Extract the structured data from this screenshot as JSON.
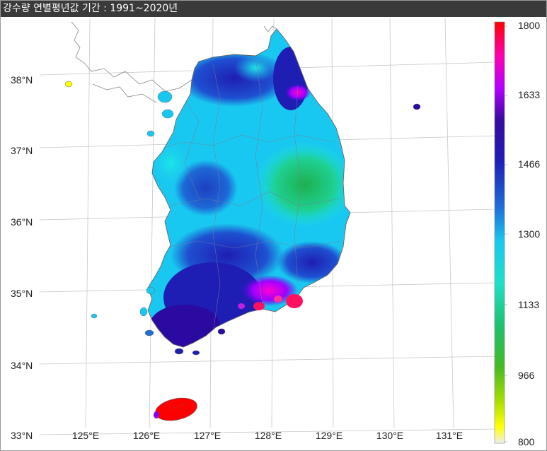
{
  "window": {
    "title": "강수량 연별평년값 기간 : 1991~2020년"
  },
  "axes": {
    "lat_labels": [
      "38°N",
      "37°N",
      "36°N",
      "35°N",
      "34°N",
      "33°N"
    ],
    "lon_labels": [
      "125°E",
      "126°E",
      "127°E",
      "128°E",
      "129°E",
      "130°E",
      "131°E"
    ]
  },
  "colorbar": {
    "labels": [
      "1800",
      "1633",
      "1466",
      "1300",
      "1133",
      "966",
      "800"
    ],
    "min": 800,
    "max": 1800,
    "colors": [
      "#eeeeee",
      "#ffff00",
      "#aade00",
      "#44bb22",
      "#1ec070",
      "#1ee6d8",
      "#19c8f0",
      "#1e6ed8",
      "#1e1eb4",
      "#2a0aa0",
      "#8000e6",
      "#ff00ff",
      "#ff0000"
    ]
  },
  "map": {
    "region": "Korean Peninsula",
    "colors": {
      "low": "#1ec070",
      "mid": "#19c8f0",
      "high": "#1e1eb4",
      "very_high": "#ff00ff",
      "max": "#ff0000"
    }
  }
}
